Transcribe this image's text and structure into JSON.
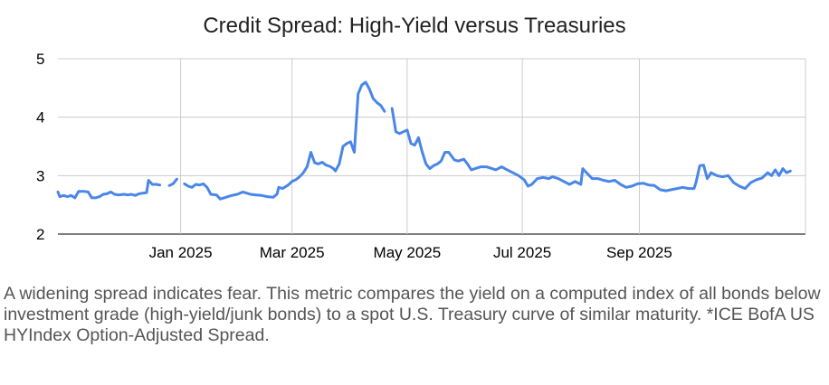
{
  "chart_data": {
    "type": "line",
    "title": "Credit Spread: High-Yield versus Treasuries",
    "xlabel": "",
    "ylabel": "",
    "ylim": [
      2,
      5
    ],
    "yticks": [
      "2",
      "3",
      "4",
      "5"
    ],
    "xticks": [
      {
        "date": "2025-01-01",
        "label": "Jan 2025"
      },
      {
        "date": "2025-03-01",
        "label": "Mar 2025"
      },
      {
        "date": "2025-05-01",
        "label": "May 2025"
      },
      {
        "date": "2025-07-01",
        "label": "Jul 2025"
      },
      {
        "date": "2025-09-01",
        "label": "Sep 2025"
      }
    ],
    "xrange": [
      "2024-10-28",
      "2025-11-28"
    ],
    "grid": true,
    "line_color": "#4a86e8",
    "series": [
      {
        "segments": [
          [
            [
              "2024-10-28",
              2.72
            ],
            [
              "2024-10-29",
              2.64
            ],
            [
              "2024-10-31",
              2.66
            ],
            [
              "2024-11-02",
              2.64
            ],
            [
              "2024-11-04",
              2.66
            ],
            [
              "2024-11-06",
              2.62
            ],
            [
              "2024-11-08",
              2.73
            ],
            [
              "2024-11-11",
              2.73
            ],
            [
              "2024-11-13",
              2.72
            ],
            [
              "2024-11-15",
              2.62
            ],
            [
              "2024-11-17",
              2.62
            ],
            [
              "2024-11-19",
              2.64
            ],
            [
              "2024-11-21",
              2.68
            ],
            [
              "2024-11-23",
              2.69
            ],
            [
              "2024-11-25",
              2.72
            ],
            [
              "2024-11-27",
              2.68
            ],
            [
              "2024-11-29",
              2.67
            ],
            [
              "2024-12-02",
              2.68
            ],
            [
              "2024-12-04",
              2.67
            ],
            [
              "2024-12-06",
              2.68
            ],
            [
              "2024-12-08",
              2.66
            ],
            [
              "2024-12-10",
              2.69
            ],
            [
              "2024-12-12",
              2.7
            ],
            [
              "2024-12-14",
              2.71
            ],
            [
              "2024-12-15",
              2.92
            ],
            [
              "2024-12-17",
              2.85
            ],
            [
              "2024-12-19",
              2.85
            ],
            [
              "2024-12-21",
              2.84
            ]
          ],
          [
            [
              "2024-12-26",
              2.83
            ],
            [
              "2024-12-28",
              2.86
            ],
            [
              "2024-12-30",
              2.94
            ]
          ],
          [
            [
              "2025-01-03",
              2.86
            ],
            [
              "2025-01-05",
              2.82
            ],
            [
              "2025-01-07",
              2.8
            ],
            [
              "2025-01-09",
              2.85
            ],
            [
              "2025-01-11",
              2.84
            ],
            [
              "2025-01-13",
              2.86
            ],
            [
              "2025-01-15",
              2.8
            ],
            [
              "2025-01-17",
              2.68
            ],
            [
              "2025-01-20",
              2.67
            ],
            [
              "2025-01-22",
              2.6
            ],
            [
              "2025-01-25",
              2.63
            ],
            [
              "2025-01-28",
              2.66
            ],
            [
              "2025-01-31",
              2.68
            ],
            [
              "2025-02-03",
              2.72
            ],
            [
              "2025-02-05",
              2.7
            ],
            [
              "2025-02-07",
              2.68
            ],
            [
              "2025-02-10",
              2.67
            ],
            [
              "2025-02-13",
              2.66
            ],
            [
              "2025-02-16",
              2.64
            ],
            [
              "2025-02-19",
              2.63
            ],
            [
              "2025-02-21",
              2.68
            ],
            [
              "2025-02-22",
              2.8
            ],
            [
              "2025-02-24",
              2.78
            ],
            [
              "2025-02-27",
              2.84
            ],
            [
              "2025-03-01",
              2.9
            ],
            [
              "2025-03-03",
              2.93
            ],
            [
              "2025-03-05",
              2.98
            ],
            [
              "2025-03-07",
              3.05
            ],
            [
              "2025-03-09",
              3.15
            ],
            [
              "2025-03-11",
              3.4
            ],
            [
              "2025-03-13",
              3.22
            ],
            [
              "2025-03-15",
              3.2
            ],
            [
              "2025-03-17",
              3.23
            ],
            [
              "2025-03-19",
              3.18
            ],
            [
              "2025-03-21",
              3.16
            ],
            [
              "2025-03-23",
              3.12
            ],
            [
              "2025-03-24",
              3.08
            ],
            [
              "2025-03-26",
              3.2
            ],
            [
              "2025-03-28",
              3.5
            ],
            [
              "2025-03-30",
              3.55
            ],
            [
              "2025-04-01",
              3.58
            ],
            [
              "2025-04-03",
              3.4
            ],
            [
              "2025-04-05",
              4.4
            ],
            [
              "2025-04-07",
              4.55
            ],
            [
              "2025-04-09",
              4.6
            ],
            [
              "2025-04-11",
              4.48
            ],
            [
              "2025-04-13",
              4.32
            ],
            [
              "2025-04-15",
              4.25
            ],
            [
              "2025-04-17",
              4.2
            ],
            [
              "2025-04-19",
              4.1
            ]
          ],
          [
            [
              "2025-04-23",
              4.15
            ],
            [
              "2025-04-25",
              3.75
            ],
            [
              "2025-04-27",
              3.72
            ],
            [
              "2025-04-29",
              3.75
            ],
            [
              "2025-05-01",
              3.78
            ],
            [
              "2025-05-03",
              3.55
            ],
            [
              "2025-05-05",
              3.52
            ],
            [
              "2025-05-07",
              3.65
            ],
            [
              "2025-05-09",
              3.4
            ],
            [
              "2025-05-11",
              3.2
            ],
            [
              "2025-05-13",
              3.12
            ],
            [
              "2025-05-15",
              3.17
            ],
            [
              "2025-05-17",
              3.2
            ],
            [
              "2025-05-19",
              3.25
            ],
            [
              "2025-05-21",
              3.4
            ],
            [
              "2025-05-23",
              3.4
            ],
            [
              "2025-05-26",
              3.27
            ],
            [
              "2025-05-28",
              3.25
            ],
            [
              "2025-05-31",
              3.28
            ],
            [
              "2025-06-02",
              3.2
            ],
            [
              "2025-06-04",
              3.1
            ],
            [
              "2025-06-06",
              3.12
            ],
            [
              "2025-06-09",
              3.15
            ],
            [
              "2025-06-12",
              3.15
            ],
            [
              "2025-06-15",
              3.12
            ],
            [
              "2025-06-17",
              3.1
            ],
            [
              "2025-06-20",
              3.15
            ],
            [
              "2025-06-23",
              3.1
            ],
            [
              "2025-06-26",
              3.05
            ],
            [
              "2025-06-29",
              3.0
            ],
            [
              "2025-07-02",
              2.93
            ],
            [
              "2025-07-04",
              2.82
            ],
            [
              "2025-07-06",
              2.85
            ],
            [
              "2025-07-09",
              2.95
            ],
            [
              "2025-07-12",
              2.97
            ],
            [
              "2025-07-15",
              2.95
            ],
            [
              "2025-07-17",
              2.98
            ],
            [
              "2025-07-20",
              2.95
            ],
            [
              "2025-07-23",
              2.9
            ],
            [
              "2025-07-26",
              2.85
            ],
            [
              "2025-07-29",
              2.9
            ],
            [
              "2025-08-01",
              2.85
            ],
            [
              "2025-08-02",
              3.12
            ],
            [
              "2025-08-04",
              3.05
            ],
            [
              "2025-08-07",
              2.95
            ],
            [
              "2025-08-10",
              2.95
            ],
            [
              "2025-08-13",
              2.92
            ],
            [
              "2025-08-16",
              2.9
            ],
            [
              "2025-08-19",
              2.92
            ],
            [
              "2025-08-22",
              2.85
            ],
            [
              "2025-08-25",
              2.8
            ],
            [
              "2025-08-28",
              2.82
            ],
            [
              "2025-08-31",
              2.86
            ],
            [
              "2025-09-03",
              2.87
            ],
            [
              "2025-09-06",
              2.84
            ],
            [
              "2025-09-09",
              2.83
            ],
            [
              "2025-09-12",
              2.76
            ],
            [
              "2025-09-15",
              2.74
            ],
            [
              "2025-09-18",
              2.76
            ],
            [
              "2025-09-21",
              2.78
            ],
            [
              "2025-09-24",
              2.8
            ],
            [
              "2025-09-27",
              2.78
            ],
            [
              "2025-09-30",
              2.78
            ],
            [
              "2025-10-01",
              2.88
            ],
            [
              "2025-10-03",
              3.17
            ],
            [
              "2025-10-05",
              3.18
            ],
            [
              "2025-10-07",
              2.95
            ],
            [
              "2025-10-09",
              3.05
            ],
            [
              "2025-10-12",
              3.0
            ],
            [
              "2025-10-15",
              2.98
            ],
            [
              "2025-10-18",
              3.0
            ],
            [
              "2025-10-21",
              2.88
            ],
            [
              "2025-10-24",
              2.82
            ],
            [
              "2025-10-27",
              2.78
            ],
            [
              "2025-10-30",
              2.88
            ],
            [
              "2025-11-02",
              2.93
            ],
            [
              "2025-11-05",
              2.96
            ],
            [
              "2025-11-08",
              3.05
            ],
            [
              "2025-11-10",
              3.0
            ],
            [
              "2025-11-12",
              3.1
            ],
            [
              "2025-11-14",
              3.0
            ],
            [
              "2025-11-16",
              3.12
            ],
            [
              "2025-11-18",
              3.05
            ],
            [
              "2025-11-20",
              3.08
            ]
          ]
        ]
      }
    ]
  },
  "caption": "A widening spread indicates fear. This metric compares the yield on a computed index of all bonds below investment grade (high-yield/junk bonds) to a spot U.S. Treasury curve of similar maturity. *ICE BofA US HYIndex Option-Adjusted Spread."
}
